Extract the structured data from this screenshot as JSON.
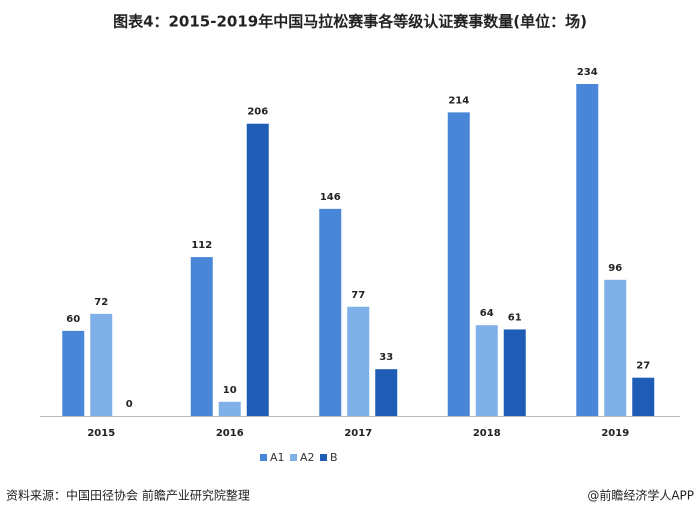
{
  "chart_data": {
    "type": "bar",
    "title": "图表4：2015-2019年中国马拉松赛事各等级认证赛事数量(单位：场)",
    "categories": [
      "2015",
      "2016",
      "2017",
      "2018",
      "2019"
    ],
    "series": [
      {
        "name": "A1",
        "color": "#4a86d8",
        "values": [
          60,
          112,
          146,
          214,
          234
        ]
      },
      {
        "name": "A2",
        "color": "#7fb1e8",
        "values": [
          72,
          10,
          77,
          64,
          96
        ]
      },
      {
        "name": "B",
        "color": "#1f5cb5",
        "values": [
          0,
          206,
          33,
          61,
          27
        ]
      }
    ],
    "source": "资料来源：中国田径协会 前瞻产业研究院整理",
    "credit": "@前瞻经济学人APP"
  }
}
